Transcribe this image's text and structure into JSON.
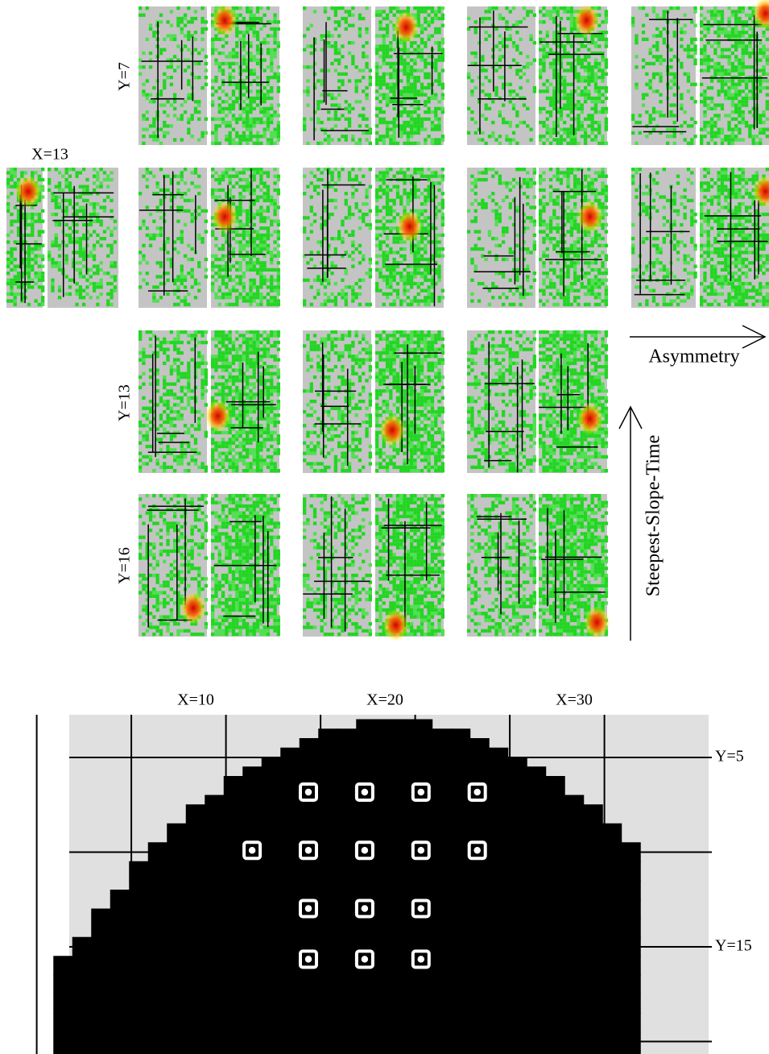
{
  "top": {
    "column_label": "X=13",
    "row_labels": [
      "Y=7",
      "Y=13",
      "Y=16"
    ],
    "x_axis_label": "Asymmetry",
    "y_axis_label": "Steepest-Slope-Time"
  },
  "bottom": {
    "x_labels": [
      "X=10",
      "X=20",
      "X=30"
    ],
    "y_labels": [
      "Y=5",
      "Y=15"
    ]
  }
}
